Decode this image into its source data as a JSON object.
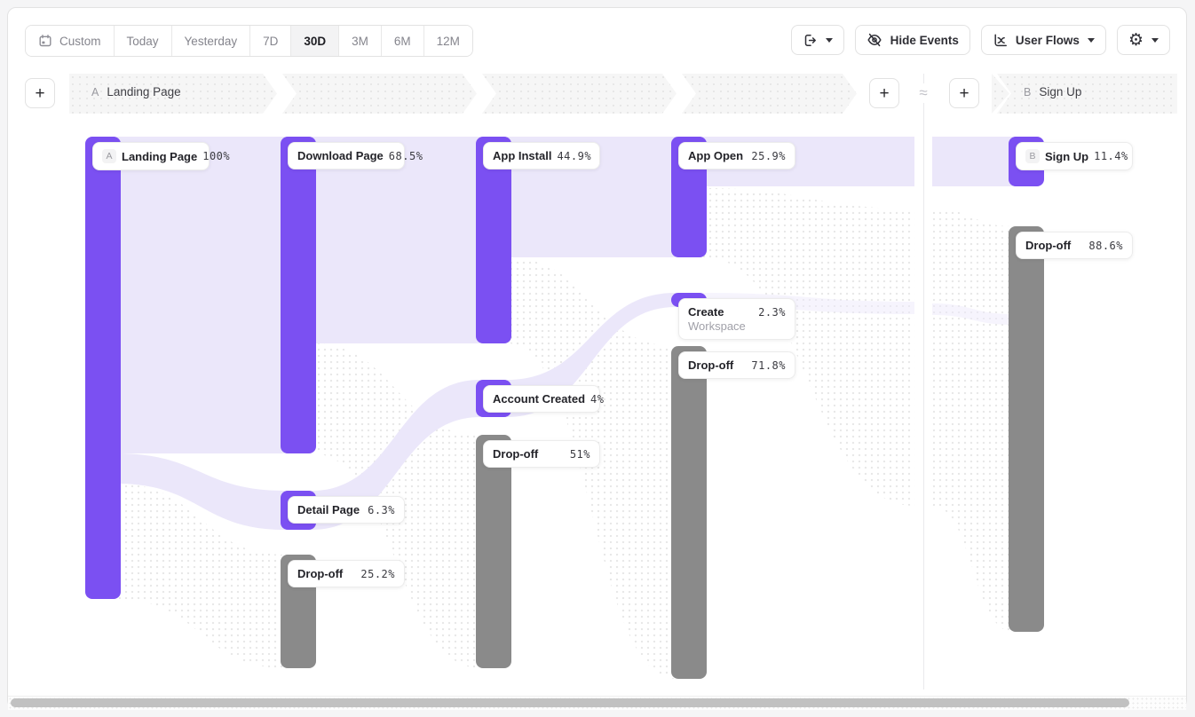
{
  "toolbar": {
    "date_ranges": [
      "Custom",
      "Today",
      "Yesterday",
      "7D",
      "30D",
      "3M",
      "6M",
      "12M"
    ],
    "active_range": "30D",
    "hide_events_label": "Hide Events",
    "user_flows_label": "User Flows",
    "gear_glyph": "⚙"
  },
  "funnel_header": {
    "add_label": "+",
    "approx": "≈",
    "steps": [
      {
        "badge": "A",
        "label": "Landing Page"
      },
      {
        "badge": "B",
        "label": "Sign Up"
      }
    ]
  },
  "chart_data": {
    "type": "sankey",
    "title": "User Flows between step A (Landing Page) and step B (Sign Up), 30D range",
    "panes": [
      {
        "badge": "A",
        "step": "Landing Page"
      },
      {
        "badge": "B",
        "step": "Sign Up"
      }
    ],
    "nodes": [
      {
        "id": "landing",
        "badge": "A",
        "label": "Landing Page",
        "value": "100%",
        "kind": "step"
      },
      {
        "id": "download",
        "label": "Download Page",
        "value": "68.5%",
        "kind": "step"
      },
      {
        "id": "detail",
        "label": "Detail Page",
        "value": "6.3%",
        "kind": "step"
      },
      {
        "id": "dropoff1",
        "label": "Drop-off",
        "value": "25.2%",
        "kind": "dropoff"
      },
      {
        "id": "appinstall",
        "label": "App Install",
        "value": "44.9%",
        "kind": "step"
      },
      {
        "id": "account",
        "label": "Account Created",
        "value": "4%",
        "kind": "step"
      },
      {
        "id": "dropoff2",
        "label": "Drop-off",
        "value": "51%",
        "kind": "dropoff"
      },
      {
        "id": "appopen",
        "label": "App Open",
        "value": "25.9%",
        "kind": "step"
      },
      {
        "id": "createws",
        "label": "Create",
        "label2": "Workspace",
        "value": "2.3%",
        "kind": "step"
      },
      {
        "id": "dropoff3",
        "label": "Drop-off",
        "value": "71.8%",
        "kind": "dropoff"
      },
      {
        "id": "signup",
        "badge": "B",
        "label": "Sign Up",
        "value": "11.4%",
        "kind": "step"
      },
      {
        "id": "dropoff4",
        "label": "Drop-off",
        "value": "88.6%",
        "kind": "dropoff"
      }
    ],
    "links": [
      {
        "source": "landing",
        "target": "download"
      },
      {
        "source": "landing",
        "target": "detail"
      },
      {
        "source": "landing",
        "target": "dropoff1"
      },
      {
        "source": "download",
        "target": "appinstall"
      },
      {
        "source": "detail",
        "target": "account"
      },
      {
        "source": "download",
        "target": "dropoff2"
      },
      {
        "source": "appinstall",
        "target": "appopen"
      },
      {
        "source": "account",
        "target": "createws"
      },
      {
        "source": "appinstall",
        "target": "dropoff3"
      },
      {
        "source": "appopen",
        "target": "signup"
      },
      {
        "source": "createws",
        "target": "signup"
      },
      {
        "source": "appopen",
        "target": "dropoff4"
      }
    ],
    "colors": {
      "step": "#7B50F2",
      "dropoff": "#8A8A8A",
      "flow": "#EBE7FA"
    }
  }
}
